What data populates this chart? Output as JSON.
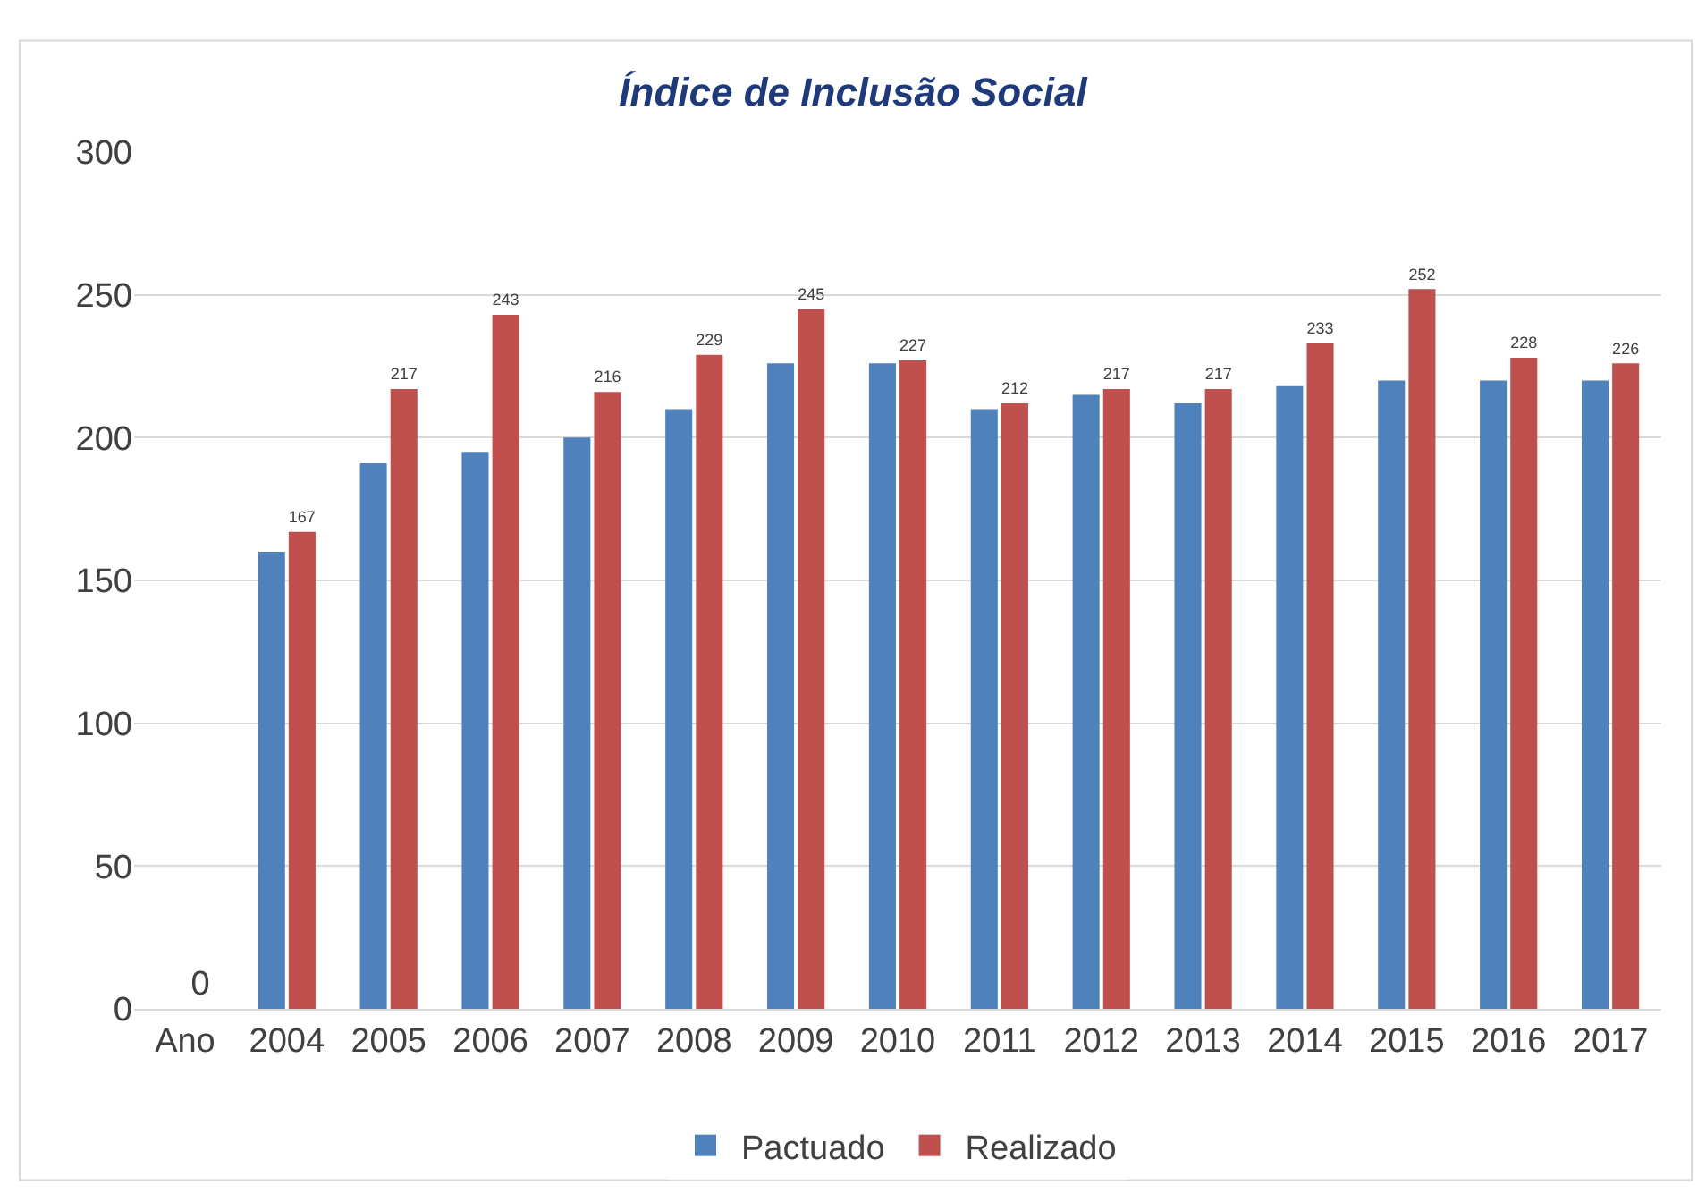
{
  "chart_data": {
    "type": "bar",
    "title": "Índice de Inclusão Social",
    "categories": [
      "Ano",
      "2004",
      "2005",
      "2006",
      "2007",
      "2008",
      "2009",
      "2010",
      "2011",
      "2012",
      "2013",
      "2014",
      "2015",
      "2016",
      "2017"
    ],
    "series": [
      {
        "name": "Pactuado",
        "color": "#4f81bd",
        "values": [
          null,
          160,
          191,
          195,
          200,
          210,
          226,
          226,
          210,
          215,
          212,
          218,
          220,
          220,
          220
        ]
      },
      {
        "name": "Realizado",
        "color": "#c0504d",
        "values": [
          0,
          167,
          217,
          243,
          216,
          229,
          245,
          227,
          212,
          217,
          217,
          233,
          252,
          228,
          226
        ],
        "value_labels": [
          "0",
          "167",
          "217",
          "243",
          "216",
          "229",
          "245",
          "227",
          "212",
          "217",
          "217",
          "233",
          "252",
          "228",
          "226"
        ]
      }
    ],
    "ylim": [
      0,
      300
    ],
    "yticks": [
      0,
      50,
      100,
      150,
      200,
      250,
      300
    ],
    "grid": "y",
    "legend": "bottom"
  }
}
